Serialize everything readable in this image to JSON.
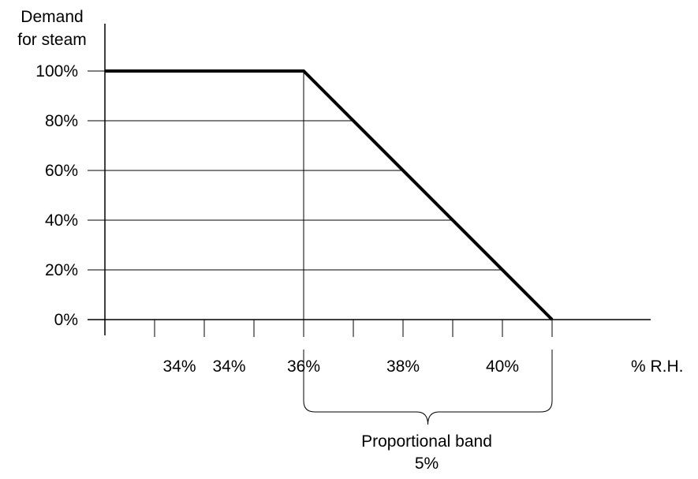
{
  "chart_data": {
    "type": "line",
    "ylabel": [
      "Demand",
      "for steam"
    ],
    "xlabel": "% R.H.",
    "y_ticks": [
      {
        "value": 0,
        "label": "0%"
      },
      {
        "value": 20,
        "label": "20%"
      },
      {
        "value": 40,
        "label": "40%"
      },
      {
        "value": 60,
        "label": "60%"
      },
      {
        "value": 80,
        "label": "80%"
      },
      {
        "value": 100,
        "label": "100%"
      }
    ],
    "ylim": [
      0,
      100
    ],
    "xlim": [
      32,
      43
    ],
    "x_ticks": [
      33,
      34,
      35,
      36,
      37,
      38,
      39,
      40,
      41
    ],
    "x_tick_labels": [
      {
        "value": 33.5,
        "label": "34%"
      },
      {
        "value": 34.5,
        "label": "34%"
      },
      {
        "value": 36,
        "label": "36%"
      },
      {
        "value": 38,
        "label": "38%"
      },
      {
        "value": 40,
        "label": "40%"
      }
    ],
    "grid": "horizontal",
    "series": [
      {
        "points": [
          {
            "x": 32,
            "y": 100
          },
          {
            "x": 36,
            "y": 100
          },
          {
            "x": 41,
            "y": 0
          }
        ]
      }
    ],
    "band": {
      "from": 36,
      "to": 41,
      "label_line1": "Proportional band",
      "label_line2": "5%"
    }
  }
}
